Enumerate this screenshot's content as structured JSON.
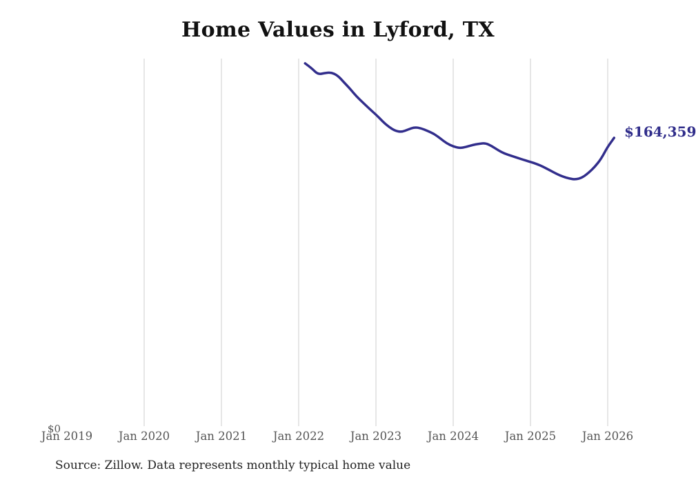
{
  "page": {
    "title": "Home Values in Lyford, TX",
    "source_note": "Source: Zillow. Data represents monthly typical home value"
  },
  "chart_data": {
    "type": "line",
    "title": "Home Values in Lyford, TX",
    "xlabel": "",
    "ylabel": "",
    "x_range_months": [
      "2019-01",
      "2026-02"
    ],
    "ylim": [
      0,
      209400
    ],
    "y_zero_label": "$0",
    "x_tick_labels": [
      "Jan 2019",
      "Jan 2020",
      "Jan 2021",
      "Jan 2022",
      "Jan 2023",
      "Jan 2024",
      "Jan 2025",
      "Jan 2026"
    ],
    "grid": "vertical-yearly",
    "legend": "none",
    "end_label": "$164,359",
    "final_value": 164359,
    "series": [
      {
        "name": "Monthly typical home value",
        "dates": [
          "2022-02",
          "2022-03",
          "2022-04",
          "2022-05",
          "2022-06",
          "2022-07",
          "2022-08",
          "2022-09",
          "2022-10",
          "2022-11",
          "2022-12",
          "2023-01",
          "2023-02",
          "2023-03",
          "2023-04",
          "2023-05",
          "2023-06",
          "2023-07",
          "2023-08",
          "2023-09",
          "2023-10",
          "2023-11",
          "2023-12",
          "2024-01",
          "2024-02",
          "2024-03",
          "2024-04",
          "2024-05",
          "2024-06",
          "2024-07",
          "2024-08",
          "2024-09",
          "2024-10",
          "2024-11",
          "2024-12",
          "2025-01",
          "2025-02",
          "2025-03",
          "2025-04",
          "2025-05",
          "2025-06",
          "2025-07",
          "2025-08",
          "2025-09",
          "2025-10",
          "2025-11",
          "2025-12",
          "2026-01",
          "2026-02"
        ],
        "values": [
          206600,
          203900,
          200300,
          201100,
          201500,
          199900,
          196000,
          192100,
          187800,
          184300,
          180800,
          177600,
          173800,
          170600,
          168300,
          167700,
          169100,
          170400,
          169800,
          168300,
          166700,
          164000,
          161200,
          159500,
          158500,
          159200,
          160300,
          161000,
          161400,
          159700,
          157300,
          155400,
          154200,
          153000,
          151800,
          150700,
          149500,
          147900,
          146000,
          144000,
          142400,
          141300,
          140700,
          141700,
          144400,
          147900,
          152600,
          159300,
          164359
        ]
      }
    ],
    "colors": {
      "line": "#322e8c",
      "end_label": "#2f2c8a",
      "gridline": "#cccccc",
      "tick_label": "#555555",
      "title": "#111111",
      "source": "#222222",
      "background": "#ffffff"
    }
  }
}
